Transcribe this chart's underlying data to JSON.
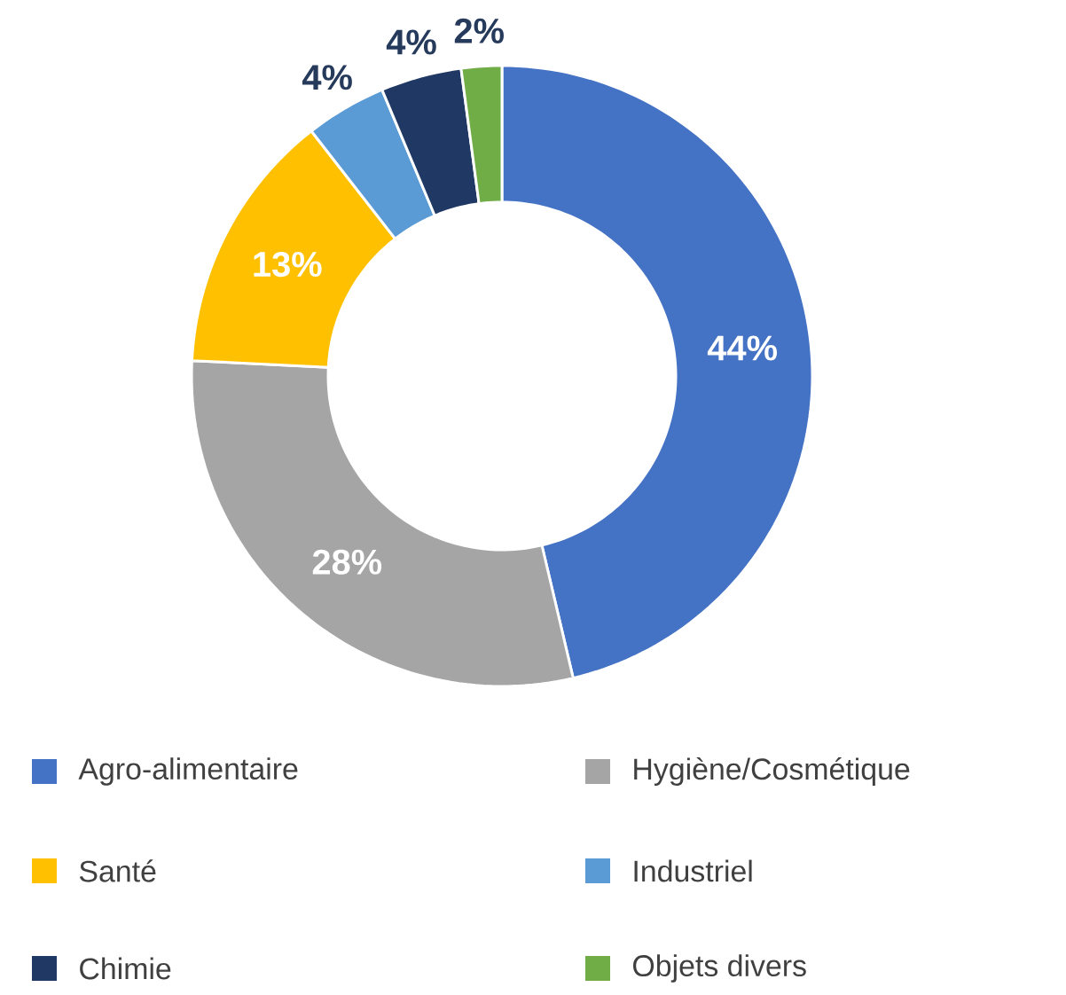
{
  "chart_data": {
    "type": "donut",
    "categories": [
      "Agro-alimentaire",
      "Hygiène/Cosmétique",
      "Santé",
      "Industriel",
      "Chimie",
      "Objets divers"
    ],
    "values": [
      44,
      28,
      13,
      4,
      4,
      2
    ],
    "value_labels": [
      "44%",
      "28%",
      "13%",
      "4%",
      "4%",
      "2%"
    ],
    "colors": [
      "#4472c4",
      "#a5a5a5",
      "#ffc000",
      "#5b9bd5",
      "#203864",
      "#70ad47"
    ],
    "legend": "bottom"
  }
}
